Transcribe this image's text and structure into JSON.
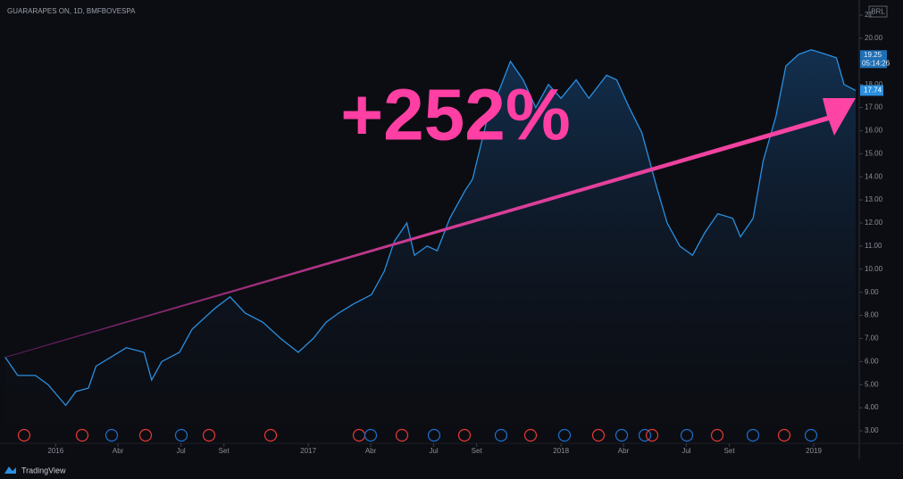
{
  "chart_data": {
    "type": "area",
    "title": "GUARARAPES ON, 1D, BMFBOVESPA",
    "annotation": "+252%",
    "currency": "BRL",
    "countdown": "05:14:26",
    "high_label": 19.25,
    "last_price": 17.74,
    "brand": "TradingView",
    "grid": false,
    "xlim": [
      2015.78,
      2019.18
    ],
    "xticks": [
      {
        "value": 2016,
        "label": "2016"
      },
      {
        "value": 2016.247,
        "label": "Abr"
      },
      {
        "value": 2016.496,
        "label": "Jul"
      },
      {
        "value": 2016.666,
        "label": "Set"
      },
      {
        "value": 2017,
        "label": "2017"
      },
      {
        "value": 2017.247,
        "label": "Abr"
      },
      {
        "value": 2017.496,
        "label": "Jul"
      },
      {
        "value": 2017.666,
        "label": "Set"
      },
      {
        "value": 2018,
        "label": "2018"
      },
      {
        "value": 2018.247,
        "label": "Abr"
      },
      {
        "value": 2018.496,
        "label": "Jul"
      },
      {
        "value": 2018.666,
        "label": "Set"
      },
      {
        "value": 2019,
        "label": "2019"
      }
    ],
    "ylim": [
      3,
      21
    ],
    "yticks": [
      {
        "value": 3,
        "label": "3.00"
      },
      {
        "value": 4,
        "label": "4.00"
      },
      {
        "value": 5,
        "label": "5.00"
      },
      {
        "value": 6,
        "label": "6.00"
      },
      {
        "value": 7,
        "label": "7.00"
      },
      {
        "value": 8,
        "label": "8.00"
      },
      {
        "value": 9,
        "label": "9.00"
      },
      {
        "value": 10,
        "label": "10.00"
      },
      {
        "value": 11,
        "label": "11.00"
      },
      {
        "value": 12,
        "label": "12.00"
      },
      {
        "value": 13,
        "label": "13.00"
      },
      {
        "value": 14,
        "label": "14.00"
      },
      {
        "value": 15,
        "label": "15.00"
      },
      {
        "value": 16,
        "label": "16.00"
      },
      {
        "value": 17,
        "label": "17.00"
      },
      {
        "value": 18,
        "label": "18.00"
      },
      {
        "value": 19,
        "label": "19.00"
      },
      {
        "value": 20,
        "label": "20.00"
      },
      21
    ],
    "series": [
      {
        "name": "GUARARAPES ON",
        "color": "#2a8fe0",
        "x": [
          2015.8,
          2015.85,
          2015.92,
          2015.97,
          2016.04,
          2016.08,
          2016.13,
          2016.16,
          2016.22,
          2016.28,
          2016.35,
          2016.38,
          2016.42,
          2016.49,
          2016.54,
          2016.63,
          2016.69,
          2016.75,
          2016.82,
          2016.89,
          2016.96,
          2017.02,
          2017.07,
          2017.12,
          2017.18,
          2017.25,
          2017.3,
          2017.34,
          2017.39,
          2017.42,
          2017.47,
          2017.51,
          2017.56,
          2017.62,
          2017.65,
          2017.71,
          2017.75,
          2017.8,
          2017.85,
          2017.9,
          2017.95,
          2018.0,
          2018.06,
          2018.11,
          2018.18,
          2018.22,
          2018.27,
          2018.32,
          2018.38,
          2018.42,
          2018.47,
          2018.52,
          2018.57,
          2018.62,
          2018.68,
          2018.71,
          2018.76,
          2018.8,
          2018.85,
          2018.89,
          2018.94,
          2018.99,
          2019.05,
          2019.09,
          2019.12,
          2019.166
        ],
        "values": [
          6.2,
          5.4,
          5.4,
          5.0,
          4.1,
          4.7,
          4.85,
          5.8,
          6.2,
          6.6,
          6.4,
          5.2,
          6.0,
          6.4,
          7.4,
          8.3,
          8.8,
          8.1,
          7.7,
          7.0,
          6.4,
          7.0,
          7.7,
          8.1,
          8.5,
          8.9,
          9.9,
          11.2,
          12.0,
          10.6,
          11.0,
          10.8,
          12.2,
          13.4,
          13.9,
          16.6,
          17.6,
          19.0,
          18.2,
          17.0,
          18.0,
          17.4,
          18.2,
          17.4,
          18.4,
          18.2,
          17.0,
          15.9,
          13.5,
          12.0,
          11.0,
          10.6,
          11.6,
          12.4,
          12.2,
          11.4,
          12.2,
          14.7,
          16.6,
          18.8,
          19.3,
          19.5,
          19.3,
          19.15,
          18.0,
          17.74
        ]
      }
    ]
  }
}
